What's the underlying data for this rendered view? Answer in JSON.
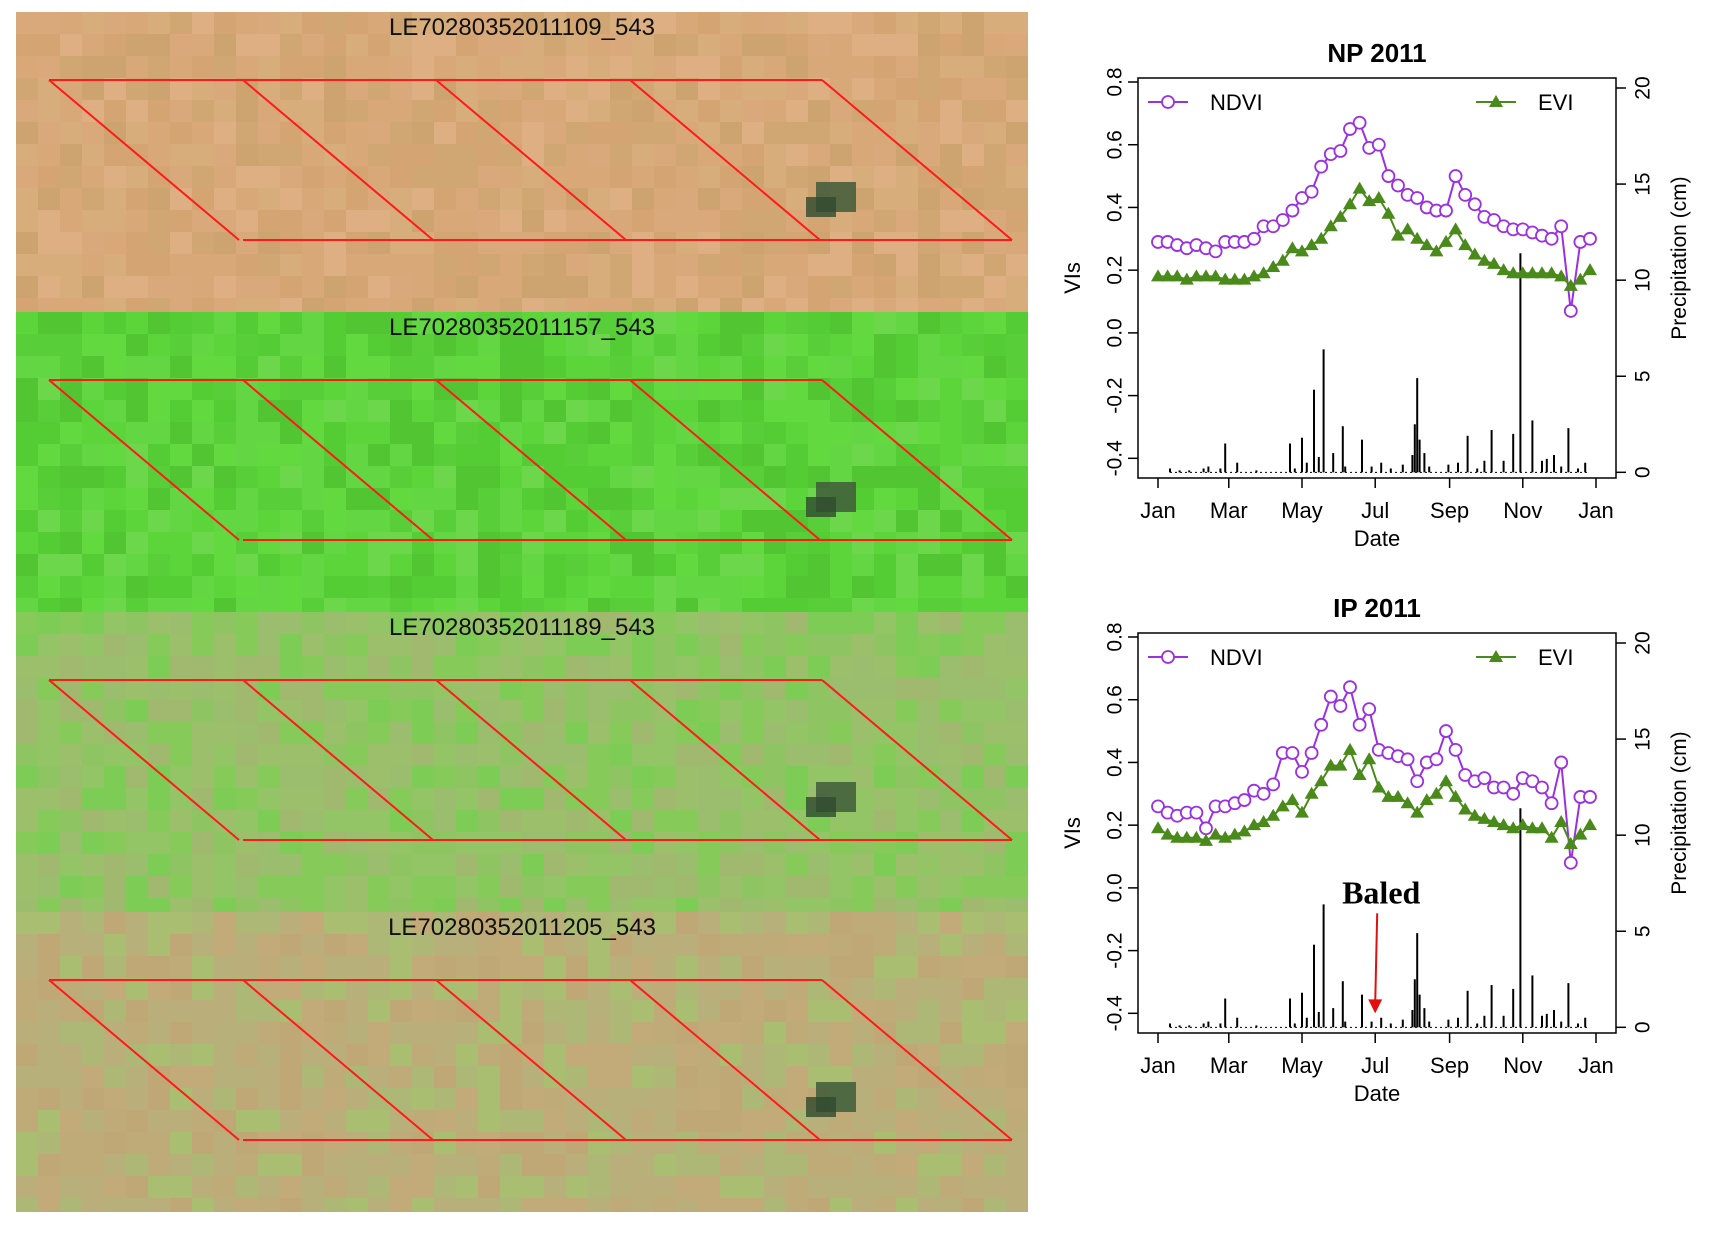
{
  "satellite_panels": [
    {
      "label": "LE70280352011109_543",
      "scene": "dry-brown"
    },
    {
      "label": "LE70280352011157_543",
      "scene": "bright-green"
    },
    {
      "label": "LE70280352011189_543",
      "scene": "mixed-green"
    },
    {
      "label": "LE70280352011205_543",
      "scene": "mixed-tan"
    }
  ],
  "colors": {
    "parcel_outline": "#ff1a1a",
    "ndvi": "#9b30e0",
    "evi": "#4a8a1a",
    "precip": "#000000",
    "annotation_arrow": "#e01010"
  },
  "chart_data": [
    {
      "type": "line",
      "title": "NP 2011",
      "xlabel": "Date",
      "ylabel": "VIs",
      "y2label": "Precipitation (cm)",
      "xlim": [
        0,
        365
      ],
      "ylim": [
        -0.45,
        0.8
      ],
      "y2lim": [
        0,
        20
      ],
      "x_ticks": [
        0,
        59,
        120,
        181,
        243,
        304,
        365
      ],
      "x_tick_labels": [
        "Jan",
        "Mar",
        "May",
        "Jul",
        "Sep",
        "Nov",
        "Jan"
      ],
      "y_ticks": [
        -0.4,
        -0.2,
        0.0,
        0.2,
        0.4,
        0.6,
        0.8
      ],
      "y_tick_labels": [
        "-0.4",
        "-0.2",
        "0.0",
        "0.2",
        "0.4",
        "0.6",
        "0.8"
      ],
      "y2_ticks": [
        0,
        5,
        10,
        15,
        20
      ],
      "y2_tick_labels": [
        "0",
        "5",
        "10",
        "15",
        "20"
      ],
      "legend": [
        {
          "name": "NDVI",
          "position": "top-left"
        },
        {
          "name": "EVI",
          "position": "top-right"
        }
      ],
      "series": [
        {
          "name": "NDVI",
          "marker": "open-circle",
          "x": [
            0,
            8,
            16,
            24,
            32,
            40,
            48,
            56,
            64,
            72,
            80,
            88,
            96,
            104,
            112,
            120,
            128,
            136,
            144,
            152,
            160,
            168,
            176,
            184,
            192,
            200,
            208,
            216,
            224,
            232,
            240,
            248,
            256,
            264,
            272,
            280,
            288,
            296,
            304,
            312,
            320,
            328,
            336,
            344,
            352,
            360
          ],
          "values": [
            0.29,
            0.29,
            0.28,
            0.27,
            0.28,
            0.27,
            0.26,
            0.29,
            0.29,
            0.29,
            0.3,
            0.34,
            0.34,
            0.36,
            0.39,
            0.43,
            0.45,
            0.53,
            0.57,
            0.58,
            0.65,
            0.67,
            0.59,
            0.6,
            0.5,
            0.47,
            0.44,
            0.43,
            0.4,
            0.39,
            0.39,
            0.5,
            0.44,
            0.41,
            0.37,
            0.36,
            0.34,
            0.33,
            0.33,
            0.32,
            0.31,
            0.3,
            0.34,
            0.07,
            0.29,
            0.3
          ]
        },
        {
          "name": "EVI",
          "marker": "filled-triangle",
          "x": [
            0,
            8,
            16,
            24,
            32,
            40,
            48,
            56,
            64,
            72,
            80,
            88,
            96,
            104,
            112,
            120,
            128,
            136,
            144,
            152,
            160,
            168,
            176,
            184,
            192,
            200,
            208,
            216,
            224,
            232,
            240,
            248,
            256,
            264,
            272,
            280,
            288,
            296,
            304,
            312,
            320,
            328,
            336,
            344,
            352,
            360
          ],
          "values": [
            0.18,
            0.18,
            0.18,
            0.17,
            0.18,
            0.18,
            0.18,
            0.17,
            0.17,
            0.17,
            0.18,
            0.19,
            0.21,
            0.23,
            0.27,
            0.26,
            0.28,
            0.3,
            0.34,
            0.37,
            0.41,
            0.46,
            0.42,
            0.43,
            0.38,
            0.31,
            0.33,
            0.3,
            0.28,
            0.26,
            0.29,
            0.33,
            0.28,
            0.25,
            0.23,
            0.22,
            0.2,
            0.19,
            0.19,
            0.19,
            0.19,
            0.19,
            0.18,
            0.15,
            0.17,
            0.2
          ]
        }
      ],
      "precipitation": {
        "x": [
          10,
          18,
          26,
          38,
          42,
          52,
          56,
          66,
          82,
          110,
          114,
          120,
          124,
          130,
          134,
          138,
          146,
          154,
          156,
          170,
          178,
          186,
          194,
          204,
          212,
          214,
          216,
          218,
          222,
          226,
          242,
          250,
          258,
          266,
          272,
          278,
          288,
          296,
          302,
          312,
          320,
          324,
          330,
          336,
          342,
          350,
          356
        ],
        "values": [
          0.2,
          0.1,
          0.1,
          0.2,
          0.3,
          0.2,
          1.5,
          0.5,
          0.1,
          1.5,
          0.2,
          1.8,
          0.5,
          4.3,
          0.8,
          6.4,
          1.0,
          2.4,
          0.3,
          1.7,
          0.3,
          0.5,
          0.2,
          0.4,
          0.9,
          2.5,
          4.9,
          1.7,
          1.0,
          0.3,
          0.4,
          0.5,
          1.9,
          0.2,
          0.6,
          2.2,
          0.6,
          2.0,
          11.4,
          2.7,
          0.6,
          0.7,
          0.9,
          0.3,
          2.3,
          0.2,
          0.5
        ]
      },
      "annotations": []
    },
    {
      "type": "line",
      "title": "IP 2011",
      "xlabel": "Date",
      "ylabel": "VIs",
      "y2label": "Precipitation (cm)",
      "xlim": [
        0,
        365
      ],
      "ylim": [
        -0.45,
        0.8
      ],
      "y2lim": [
        0,
        20
      ],
      "x_ticks": [
        0,
        59,
        120,
        181,
        243,
        304,
        365
      ],
      "x_tick_labels": [
        "Jan",
        "Mar",
        "May",
        "Jul",
        "Sep",
        "Nov",
        "Jan"
      ],
      "y_ticks": [
        -0.4,
        -0.2,
        0.0,
        0.2,
        0.4,
        0.6,
        0.8
      ],
      "y_tick_labels": [
        "-0.4",
        "-0.2",
        "0.0",
        "0.2",
        "0.4",
        "0.6",
        "0.8"
      ],
      "y2_ticks": [
        0,
        5,
        10,
        15,
        20
      ],
      "y2_tick_labels": [
        "0",
        "5",
        "10",
        "15",
        "20"
      ],
      "legend": [
        {
          "name": "NDVI",
          "position": "top-left"
        },
        {
          "name": "EVI",
          "position": "top-right"
        }
      ],
      "series": [
        {
          "name": "NDVI",
          "marker": "open-circle",
          "x": [
            0,
            8,
            16,
            24,
            32,
            40,
            48,
            56,
            64,
            72,
            80,
            88,
            96,
            104,
            112,
            120,
            128,
            136,
            144,
            152,
            160,
            168,
            176,
            184,
            192,
            200,
            208,
            216,
            224,
            232,
            240,
            248,
            256,
            264,
            272,
            280,
            288,
            296,
            304,
            312,
            320,
            328,
            336,
            344,
            352,
            360
          ],
          "values": [
            0.26,
            0.24,
            0.23,
            0.24,
            0.24,
            0.19,
            0.26,
            0.26,
            0.27,
            0.28,
            0.31,
            0.3,
            0.33,
            0.43,
            0.43,
            0.37,
            0.43,
            0.52,
            0.61,
            0.58,
            0.64,
            0.52,
            0.57,
            0.44,
            0.43,
            0.42,
            0.41,
            0.34,
            0.4,
            0.41,
            0.5,
            0.44,
            0.36,
            0.34,
            0.35,
            0.32,
            0.32,
            0.3,
            0.35,
            0.34,
            0.32,
            0.27,
            0.4,
            0.08,
            0.29,
            0.29
          ]
        },
        {
          "name": "EVI",
          "marker": "filled-triangle",
          "x": [
            0,
            8,
            16,
            24,
            32,
            40,
            48,
            56,
            64,
            72,
            80,
            88,
            96,
            104,
            112,
            120,
            128,
            136,
            144,
            152,
            160,
            168,
            176,
            184,
            192,
            200,
            208,
            216,
            224,
            232,
            240,
            248,
            256,
            264,
            272,
            280,
            288,
            296,
            304,
            312,
            320,
            328,
            336,
            344,
            352,
            360
          ],
          "values": [
            0.19,
            0.17,
            0.16,
            0.16,
            0.16,
            0.15,
            0.17,
            0.16,
            0.17,
            0.18,
            0.2,
            0.21,
            0.23,
            0.26,
            0.28,
            0.24,
            0.3,
            0.34,
            0.39,
            0.39,
            0.44,
            0.36,
            0.41,
            0.32,
            0.29,
            0.29,
            0.27,
            0.24,
            0.28,
            0.3,
            0.34,
            0.29,
            0.25,
            0.23,
            0.22,
            0.21,
            0.2,
            0.19,
            0.2,
            0.19,
            0.19,
            0.16,
            0.21,
            0.14,
            0.17,
            0.2
          ]
        }
      ],
      "precipitation": {
        "x": [
          10,
          18,
          26,
          38,
          42,
          52,
          56,
          66,
          82,
          110,
          114,
          120,
          124,
          130,
          134,
          138,
          146,
          154,
          156,
          170,
          178,
          186,
          194,
          204,
          212,
          214,
          216,
          218,
          222,
          226,
          242,
          250,
          258,
          266,
          272,
          278,
          288,
          296,
          302,
          312,
          320,
          324,
          330,
          336,
          342,
          350,
          356
        ],
        "values": [
          0.2,
          0.1,
          0.1,
          0.2,
          0.3,
          0.2,
          1.5,
          0.5,
          0.1,
          1.5,
          0.2,
          1.8,
          0.5,
          4.3,
          0.8,
          6.4,
          1.0,
          2.4,
          0.3,
          1.7,
          0.3,
          0.5,
          0.2,
          0.4,
          0.9,
          2.5,
          4.9,
          1.7,
          1.0,
          0.3,
          0.4,
          0.5,
          1.9,
          0.2,
          0.6,
          2.2,
          0.6,
          2.0,
          11.4,
          2.7,
          0.6,
          0.7,
          0.9,
          0.3,
          2.3,
          0.2,
          0.5
        ]
      },
      "annotations": [
        {
          "text": "Baled",
          "x": 181,
          "y": -0.4
        }
      ]
    }
  ]
}
